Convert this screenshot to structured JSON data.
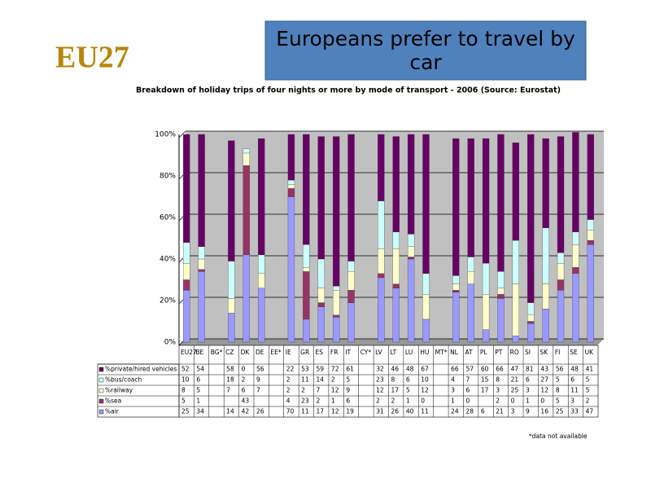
{
  "heading": "EU27",
  "chart_data": {
    "type": "stacked_bar",
    "title": "Europeans prefer to travel by car",
    "subtitle": "Breakdown of holiday trips of four nights or more by mode of transport - 2006 (Source: Eurostat)",
    "footnote": "*data not available",
    "categories": [
      "EU27",
      "BE",
      "BG*",
      "CZ",
      "DK",
      "DE",
      "EE*",
      "IE",
      "GR",
      "ES",
      "FR",
      "IT",
      "CY*",
      "LV",
      "LT",
      "LU",
      "HU",
      "MT*",
      "NL",
      "AT",
      "PL",
      "PT",
      "RO",
      "SI",
      "SK",
      "FI",
      "SE",
      "UK"
    ],
    "series": [
      {
        "name": "%private/hired vehicles",
        "color": "#660066",
        "values": [
          52,
          54,
          null,
          58,
          0,
          56,
          null,
          22,
          53,
          59,
          72,
          61,
          null,
          32,
          46,
          48,
          67,
          null,
          66,
          57,
          60,
          66,
          47,
          81,
          43,
          56,
          48,
          41
        ]
      },
      {
        "name": "%bus/coach",
        "color": "#ccffff",
        "values": [
          10,
          6,
          null,
          18,
          2,
          9,
          null,
          2,
          11,
          14,
          2,
          5,
          null,
          23,
          8,
          6,
          10,
          null,
          4,
          7,
          15,
          8,
          21,
          6,
          27,
          5,
          6,
          5
        ]
      },
      {
        "name": "%railway",
        "color": "#ffffcc",
        "values": [
          8,
          5,
          null,
          7,
          6,
          7,
          null,
          2,
          2,
          7,
          12,
          9,
          null,
          12,
          17,
          5,
          12,
          null,
          3,
          6,
          17,
          3,
          25,
          3,
          12,
          8,
          11,
          5
        ]
      },
      {
        "name": "%sea",
        "color": "#993366",
        "values": [
          5,
          1,
          null,
          null,
          43,
          null,
          null,
          4,
          23,
          2,
          1,
          6,
          null,
          2,
          2,
          1,
          0,
          null,
          1,
          0,
          null,
          2,
          0,
          1,
          0,
          5,
          3,
          2
        ]
      },
      {
        "name": "%air",
        "color": "#9999ff",
        "values": [
          25,
          34,
          null,
          14,
          42,
          26,
          null,
          70,
          11,
          17,
          12,
          19,
          null,
          31,
          26,
          40,
          11,
          null,
          24,
          28,
          6,
          21,
          3,
          9,
          16,
          25,
          33,
          47
        ]
      }
    ],
    "ylim": [
      0,
      100
    ],
    "yticks": [
      {
        "value": 0,
        "label": "0%"
      },
      {
        "value": 20,
        "label": "20%"
      },
      {
        "value": 40,
        "label": "40%"
      },
      {
        "value": 60,
        "label": "60%"
      },
      {
        "value": 80,
        "label": "80%"
      },
      {
        "value": 100,
        "label": "100%"
      }
    ],
    "grid": true
  }
}
